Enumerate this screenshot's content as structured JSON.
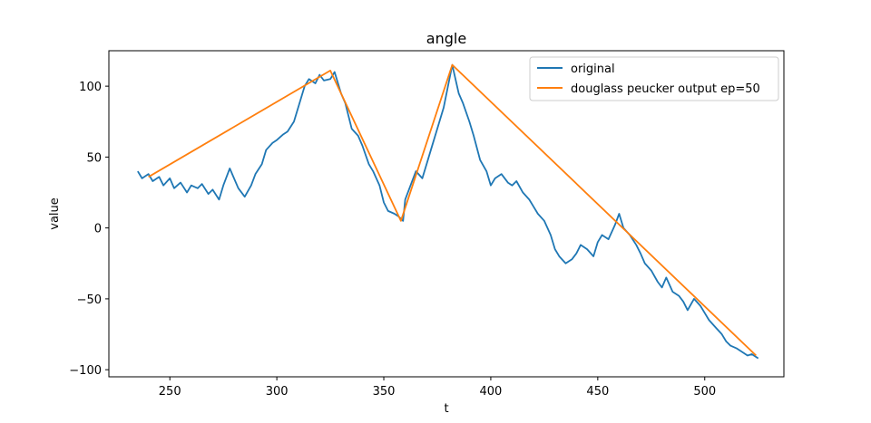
{
  "chart_data": {
    "type": "line",
    "title": "angle",
    "xlabel": "t",
    "ylabel": "value",
    "xlim": [
      221.5,
      537
    ],
    "ylim": [
      -105,
      125
    ],
    "x_ticks": [
      250,
      300,
      350,
      400,
      450,
      500
    ],
    "y_ticks": [
      -100,
      -50,
      0,
      50,
      100
    ],
    "grid": false,
    "legend_position": "top-right",
    "series": [
      {
        "name": "original",
        "color": "#1f77b4",
        "x": [
          235,
          237,
          240,
          242,
          245,
          247,
          250,
          252,
          255,
          258,
          260,
          263,
          265,
          268,
          270,
          273,
          275,
          278,
          280,
          282,
          285,
          288,
          290,
          293,
          295,
          298,
          300,
          303,
          305,
          308,
          310,
          313,
          315,
          318,
          320,
          322,
          325,
          327,
          330,
          332,
          335,
          338,
          340,
          343,
          345,
          348,
          350,
          352,
          355,
          357,
          359,
          360,
          362,
          365,
          368,
          370,
          372,
          375,
          378,
          380,
          382,
          385,
          387,
          390,
          392,
          395,
          398,
          400,
          402,
          405,
          408,
          410,
          412,
          415,
          418,
          420,
          422,
          425,
          428,
          430,
          432,
          435,
          438,
          440,
          442,
          445,
          448,
          450,
          452,
          455,
          458,
          460,
          462,
          465,
          468,
          470,
          472,
          475,
          478,
          480,
          482,
          485,
          488,
          490,
          492,
          495,
          498,
          500,
          502,
          505,
          508,
          510,
          512,
          515,
          518,
          520,
          522,
          525
        ],
        "y": [
          40,
          35,
          38,
          33,
          36,
          30,
          35,
          28,
          32,
          25,
          30,
          28,
          31,
          24,
          27,
          20,
          30,
          42,
          35,
          28,
          22,
          30,
          38,
          45,
          55,
          60,
          62,
          66,
          68,
          75,
          85,
          100,
          105,
          102,
          108,
          104,
          105,
          110,
          95,
          88,
          70,
          65,
          58,
          45,
          40,
          30,
          18,
          12,
          10,
          8,
          5,
          20,
          28,
          40,
          35,
          45,
          55,
          70,
          85,
          100,
          115,
          95,
          88,
          75,
          65,
          48,
          40,
          30,
          35,
          38,
          32,
          30,
          33,
          25,
          20,
          15,
          10,
          5,
          -5,
          -15,
          -20,
          -25,
          -22,
          -18,
          -12,
          -15,
          -20,
          -10,
          -5,
          -8,
          2,
          10,
          0,
          -5,
          -12,
          -18,
          -25,
          -30,
          -38,
          -42,
          -35,
          -45,
          -48,
          -52,
          -58,
          -50,
          -55,
          -60,
          -65,
          -70,
          -75,
          -80,
          -83,
          -85,
          -88,
          -90,
          -89,
          -92
        ],
        "values": [
          "40",
          "35",
          "38",
          "33",
          "36",
          "30",
          "35",
          "28",
          "32",
          "25",
          "30",
          "28",
          "31",
          "24",
          "27",
          "20",
          "30",
          "42",
          "35",
          "28",
          "22",
          "30",
          "38",
          "45",
          "55",
          "60",
          "62",
          "66",
          "68",
          "75",
          "85",
          "100",
          "105",
          "102",
          "108",
          "104",
          "105",
          "110",
          "95",
          "88",
          "70",
          "65",
          "58",
          "45",
          "40",
          "30",
          "18",
          "12",
          "10",
          "8",
          "5",
          "20",
          "28",
          "40",
          "35",
          "45",
          "55",
          "70",
          "85",
          "100",
          "115",
          "95",
          "88",
          "75",
          "65",
          "48",
          "40",
          "30",
          "35",
          "38",
          "32",
          "30",
          "33",
          "25",
          "20",
          "15",
          "10",
          "5",
          "-5",
          "-15",
          "-20",
          "-25",
          "-22",
          "-18",
          "-12",
          "-15",
          "-20",
          "-10",
          "-5",
          "-8",
          "2",
          "10",
          "0",
          "-5",
          "-12",
          "-18",
          "-25",
          "-30",
          "-38",
          "-42",
          "-35",
          "-45",
          "-48",
          "-52",
          "-58",
          "-50",
          "-55",
          "-60",
          "-65",
          "-70",
          "-75",
          "-80",
          "-83",
          "-85",
          "-88",
          "-90",
          "-89",
          "-92"
        ]
      },
      {
        "name": "douglass peucker output ep=50",
        "color": "#ff7f0e",
        "x": [
          240,
          325,
          358,
          382,
          524
        ],
        "y": [
          36,
          111,
          5,
          115,
          -90
        ]
      }
    ]
  }
}
